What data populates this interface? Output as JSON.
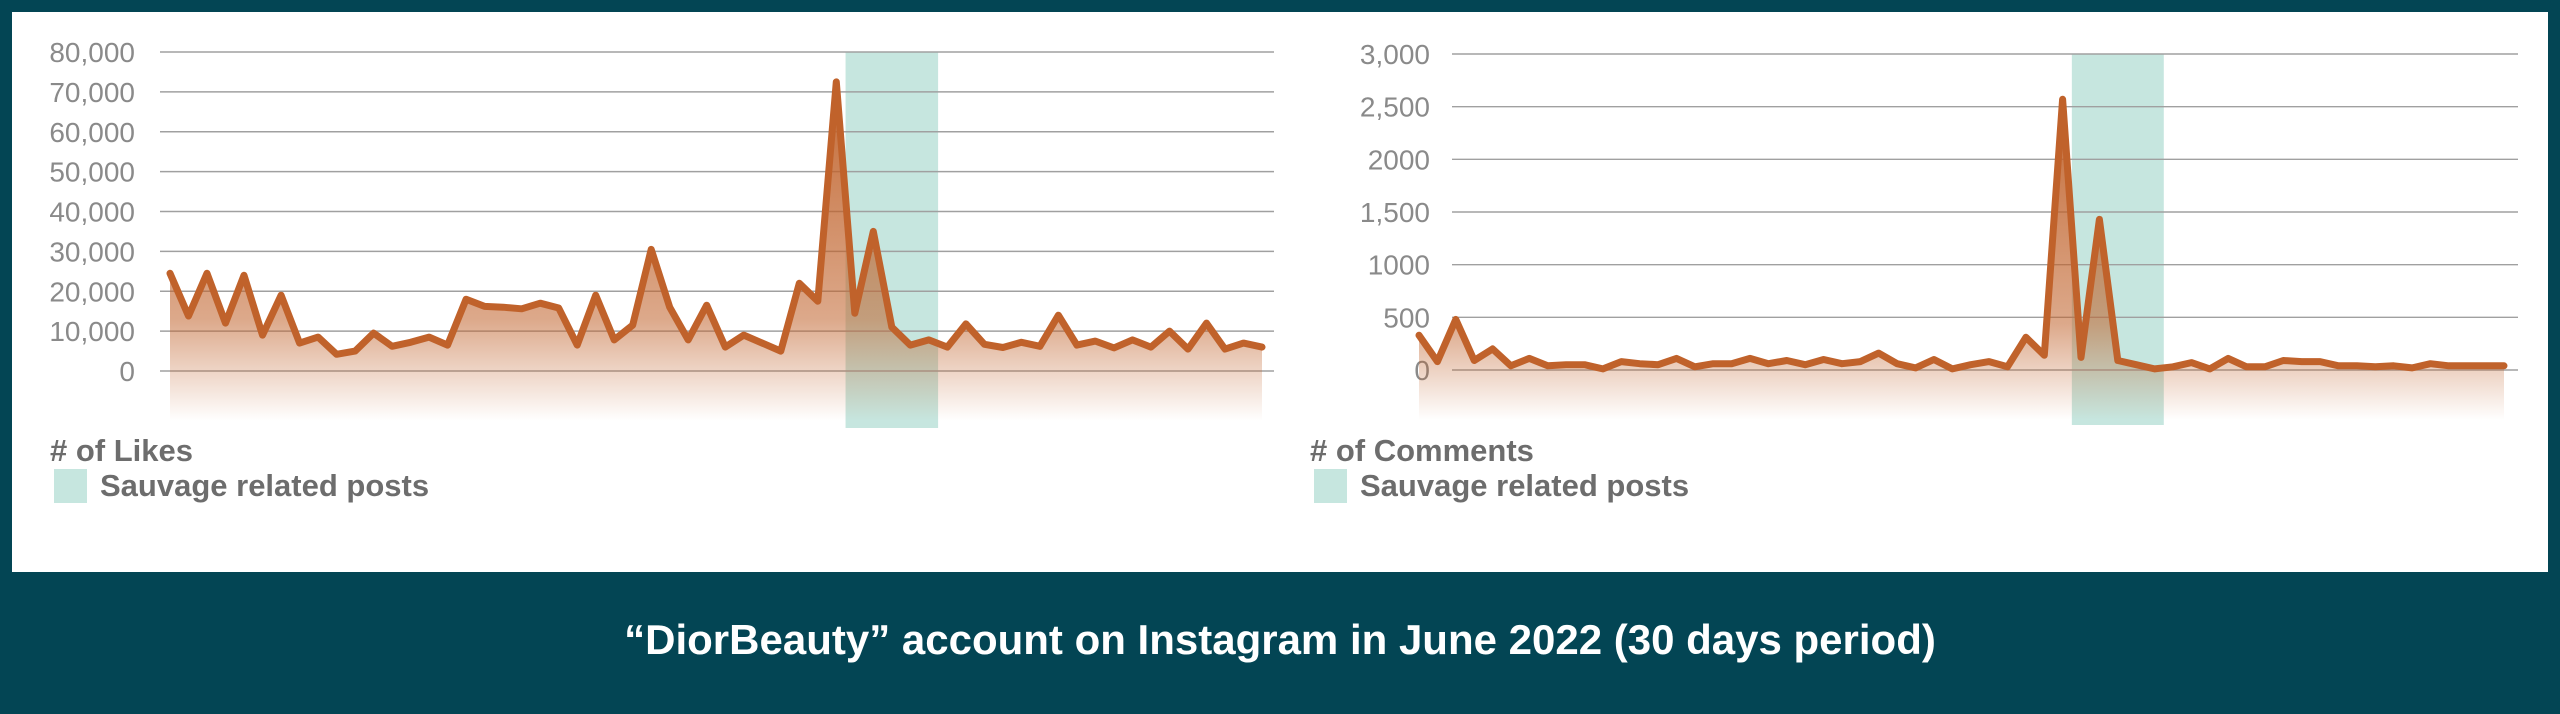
{
  "caption": "“DiorBeauty” account on Instagram in June 2022 (30 days period)",
  "colors": {
    "line": "#c0622b",
    "highlight": "#c6e6df",
    "grid": "#a0a0a0",
    "background": "#034554"
  },
  "chart_data": [
    {
      "type": "area",
      "ylabel": "# of Likes",
      "legend": "Sauvage related posts",
      "yticks": [
        "80,000",
        "70,000",
        "60,000",
        "50,000",
        "40,000",
        "30,000",
        "20,000",
        "10,000",
        "0"
      ],
      "ylim": [
        0,
        80000
      ],
      "highlight_x": [
        36.5,
        41.5
      ],
      "x": [
        0,
        1,
        2,
        3,
        4,
        5,
        6,
        7,
        8,
        9,
        10,
        11,
        12,
        13,
        14,
        15,
        16,
        17,
        18,
        19,
        20,
        21,
        22,
        23,
        24,
        25,
        26,
        27,
        28,
        29,
        30,
        31,
        32,
        33,
        34,
        35,
        36,
        37,
        38,
        39,
        40,
        41,
        42,
        43,
        44,
        45,
        46,
        47,
        48,
        49,
        50,
        51,
        52,
        53,
        54,
        55,
        56,
        57,
        58,
        59
      ],
      "values": [
        24500,
        13800,
        24500,
        12000,
        24000,
        9000,
        19000,
        7000,
        8500,
        4200,
        5000,
        9500,
        6200,
        7200,
        8500,
        6500,
        18000,
        16200,
        16000,
        15600,
        17000,
        15800,
        6500,
        19000,
        7800,
        11500,
        30500,
        16000,
        7800,
        16500,
        6000,
        9000,
        7000,
        5000,
        22000,
        17500,
        72500,
        14500,
        35000,
        11000,
        6500,
        7800,
        6000,
        11800,
        6700,
        5900,
        7200,
        6200,
        14000,
        6500,
        7500,
        5800,
        7800,
        6000,
        10000,
        5500,
        12000,
        5500,
        7000,
        6000
      ]
    },
    {
      "type": "area",
      "ylabel": "# of Comments",
      "legend": "Sauvage related posts",
      "yticks": [
        "3,000",
        "2,500",
        "2000",
        "1,500",
        "1000",
        "500",
        "0"
      ],
      "ylim": [
        0,
        3000
      ],
      "highlight_x": [
        35.5,
        40.5
      ],
      "x": [
        0,
        1,
        2,
        3,
        4,
        5,
        6,
        7,
        8,
        9,
        10,
        11,
        12,
        13,
        14,
        15,
        16,
        17,
        18,
        19,
        20,
        21,
        22,
        23,
        24,
        25,
        26,
        27,
        28,
        29,
        30,
        31,
        32,
        33,
        34,
        35,
        36,
        37,
        38,
        39,
        40,
        41,
        42,
        43,
        44,
        45,
        46,
        47,
        48,
        49,
        50,
        51,
        52,
        53,
        54,
        55,
        56,
        57,
        58,
        59
      ],
      "values": [
        330,
        80,
        480,
        90,
        200,
        40,
        110,
        40,
        50,
        50,
        10,
        80,
        60,
        50,
        110,
        30,
        60,
        60,
        110,
        60,
        90,
        50,
        100,
        60,
        80,
        160,
        60,
        20,
        100,
        10,
        50,
        80,
        30,
        310,
        140,
        2570,
        120,
        1430,
        90,
        50,
        10,
        30,
        70,
        10,
        110,
        30,
        30,
        90,
        80,
        80,
        40,
        40,
        30,
        40,
        20,
        60,
        40,
        40,
        40,
        40
      ]
    }
  ]
}
